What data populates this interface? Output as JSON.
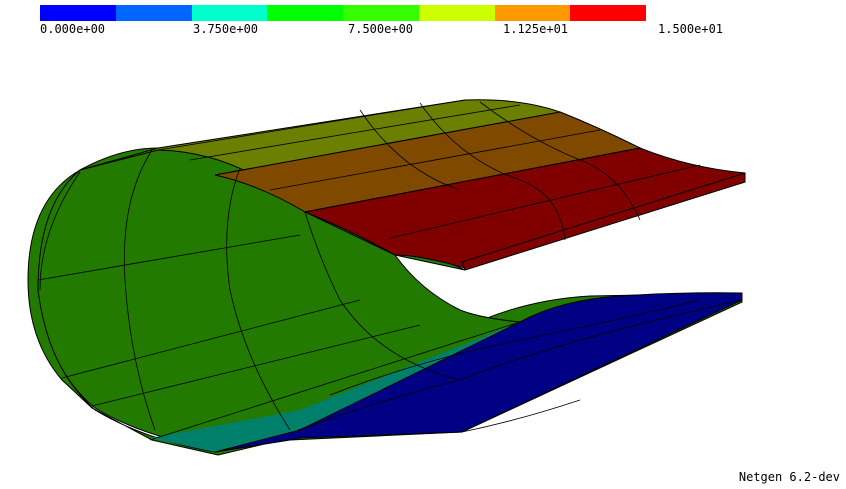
{
  "colorbar": {
    "colors": [
      "#0000ff",
      "#0066ff",
      "#00ffcc",
      "#00ff00",
      "#33ff00",
      "#ccff00",
      "#ff9900",
      "#ff0000"
    ],
    "ticks": [
      "0.000e+00",
      "3.750e+00",
      "7.500e+00",
      "1.125e+01",
      "1.500e+01"
    ]
  },
  "mesh_colors": {
    "green": "#237a00",
    "teal": "#00806a",
    "dark_blue": "#000085",
    "olive": "#6b7f00",
    "orange_brown": "#7f4a00",
    "dark_red": "#800000"
  },
  "version_label": "Netgen 6.2-dev"
}
